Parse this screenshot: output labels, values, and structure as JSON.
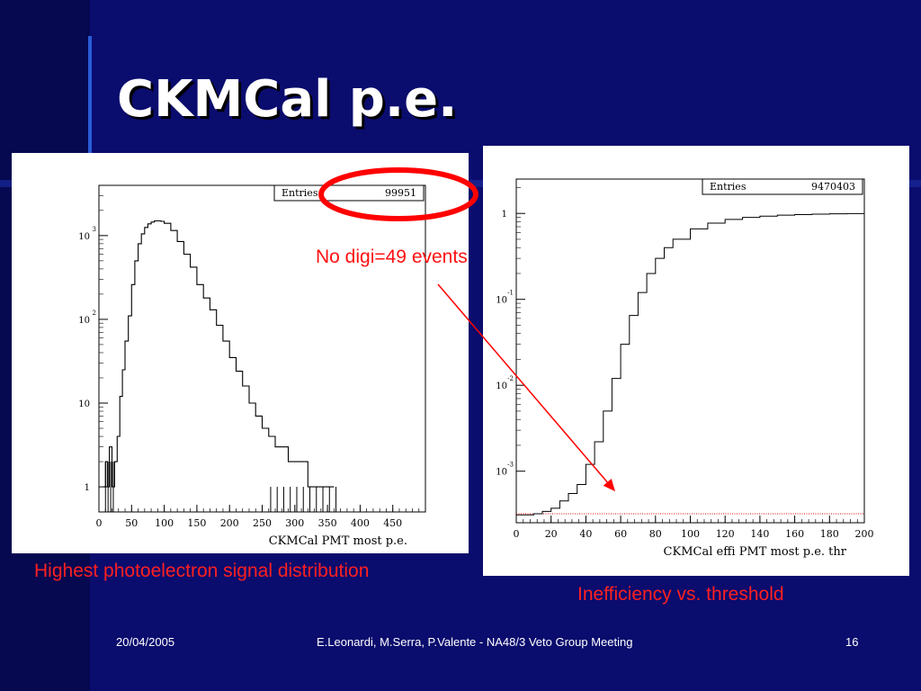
{
  "slide": {
    "title": "CKMCal p.e.",
    "footer_date": "20/04/2005",
    "footer_text": "E.Leonardi, M.Serra, P.Valente - NA48/3 Veto Group Meeting",
    "footer_page": "16",
    "annotation": "No digi=49 events",
    "caption_left": "Highest photoelectron signal distribution",
    "caption_right": "Inefficiency vs. threshold",
    "highlight_color": "#ff0000"
  },
  "chart_data": [
    {
      "type": "line",
      "title": "",
      "xlabel": "CKMCal PMT most p.e.",
      "ylabel": "",
      "xlim": [
        0,
        500
      ],
      "ylim_log10": [
        -0.3,
        3.6
      ],
      "y_scale": "log",
      "x_ticks": [
        "0",
        "50",
        "100",
        "150",
        "200",
        "250",
        "300",
        "350",
        "400",
        "450"
      ],
      "x_tick_values": [
        0,
        50,
        100,
        150,
        200,
        250,
        300,
        350,
        400,
        450
      ],
      "y_ticks": [
        {
          "base": "1",
          "exp": "",
          "value": 1
        },
        {
          "base": "10",
          "exp": "",
          "value": 10
        },
        {
          "base": "10",
          "exp": "2",
          "value": 100
        },
        {
          "base": "10",
          "exp": "3",
          "value": 1000
        }
      ],
      "stats": {
        "label": "Entries",
        "value": "99951"
      },
      "series": [
        {
          "x": [
            7,
            10,
            13,
            16,
            20,
            24,
            28,
            32,
            36,
            40,
            45,
            50,
            55,
            60,
            65,
            70,
            75,
            80,
            85,
            90,
            95,
            100,
            110,
            120,
            130,
            140,
            150,
            160,
            170,
            180,
            190,
            200,
            210,
            220,
            230,
            240,
            250,
            260,
            270,
            280,
            290,
            300,
            310,
            320,
            330,
            340,
            350,
            360
          ],
          "y": [
            1,
            2,
            1,
            3,
            1,
            2,
            4,
            12,
            25,
            55,
            110,
            260,
            500,
            800,
            1050,
            1250,
            1380,
            1450,
            1500,
            1500,
            1480,
            1400,
            1150,
            850,
            600,
            420,
            260,
            180,
            130,
            85,
            55,
            35,
            24,
            16,
            10,
            7,
            5,
            4,
            3,
            3,
            2,
            2,
            2,
            1,
            1,
            1,
            1,
            1
          ]
        }
      ]
    },
    {
      "type": "line",
      "title": "",
      "xlabel": "CKMCal effi PMT most p.e. thr",
      "ylabel": "",
      "xlim": [
        0,
        200
      ],
      "ylim_log10": [
        -3.6,
        0.4
      ],
      "y_scale": "log",
      "x_ticks": [
        "0",
        "20",
        "40",
        "60",
        "80",
        "100",
        "120",
        "140",
        "160",
        "180",
        "200"
      ],
      "x_tick_values": [
        0,
        20,
        40,
        60,
        80,
        100,
        120,
        140,
        160,
        180,
        200
      ],
      "y_ticks": [
        {
          "base": "1",
          "exp": "",
          "value": 1
        },
        {
          "base": "10",
          "exp": "-1",
          "value": 0.1
        },
        {
          "base": "10",
          "exp": "-2",
          "value": 0.01
        },
        {
          "base": "10",
          "exp": "-3",
          "value": 0.001
        }
      ],
      "stats": {
        "label": "Entries",
        "value": "9470403"
      },
      "reference_line": 0.00032,
      "series": [
        {
          "x": [
            0,
            10,
            15,
            20,
            25,
            30,
            35,
            40,
            45,
            50,
            55,
            60,
            65,
            70,
            75,
            80,
            85,
            90,
            100,
            110,
            120,
            130,
            140,
            150,
            160,
            170,
            180,
            190,
            200
          ],
          "y": [
            0.00031,
            0.00032,
            0.00034,
            0.00037,
            0.00045,
            0.00055,
            0.0007,
            0.0012,
            0.0022,
            0.005,
            0.012,
            0.03,
            0.065,
            0.12,
            0.2,
            0.3,
            0.4,
            0.5,
            0.66,
            0.77,
            0.85,
            0.9,
            0.93,
            0.955,
            0.97,
            0.98,
            0.99,
            0.995,
            1.0
          ]
        }
      ]
    }
  ]
}
